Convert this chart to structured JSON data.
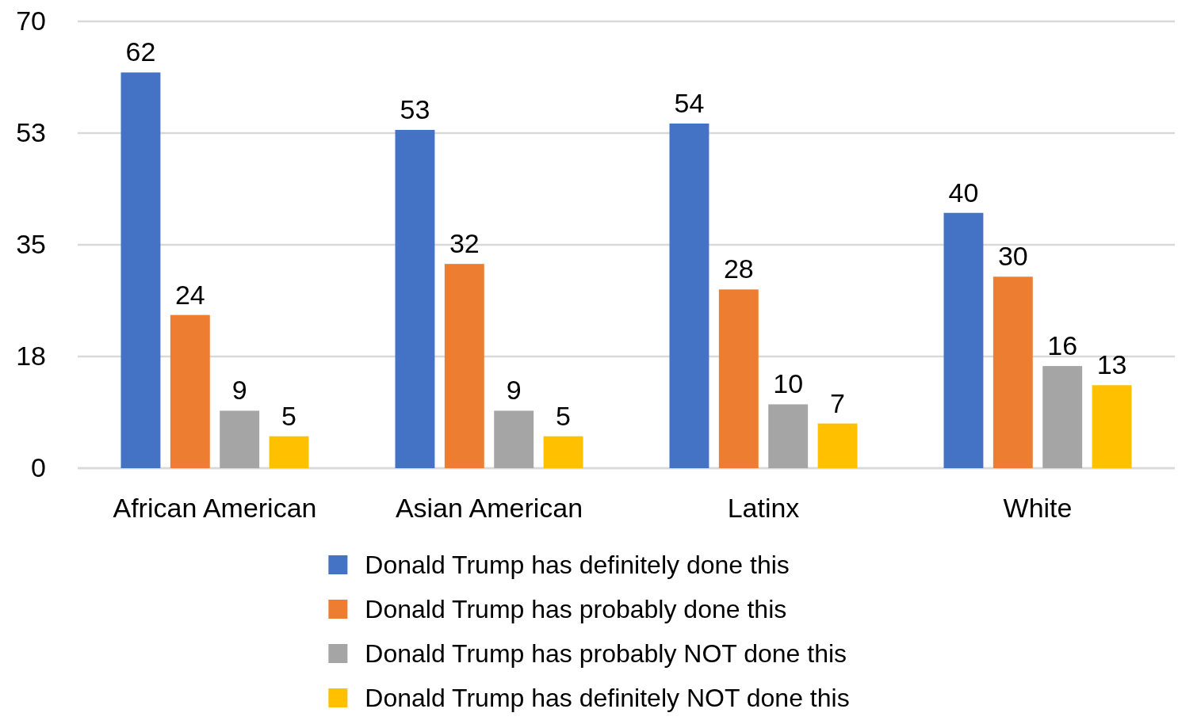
{
  "chart_data": {
    "type": "bar",
    "categories": [
      "African American",
      "Asian American",
      "Latinx",
      "White"
    ],
    "series": [
      {
        "name": "Donald Trump has definitely done this",
        "color": "#4472c4",
        "values": [
          62,
          53,
          54,
          40
        ]
      },
      {
        "name": "Donald Trump has probably done this",
        "color": "#ed7d31",
        "values": [
          24,
          32,
          28,
          30
        ]
      },
      {
        "name": "Donald Trump has probably NOT done this",
        "color": "#a5a5a5",
        "values": [
          9,
          9,
          10,
          16
        ]
      },
      {
        "name": "Donald Trump has definitely NOT done this",
        "color": "#ffc000",
        "values": [
          5,
          5,
          7,
          13
        ]
      }
    ],
    "ylim": [
      0,
      70
    ],
    "yticks": [
      0,
      {
        "value": 17.5,
        "label": "18"
      },
      35,
      {
        "value": 52.5,
        "label": "53"
      },
      70
    ],
    "grid": "y",
    "legend": "bottom",
    "data_labels": true
  }
}
